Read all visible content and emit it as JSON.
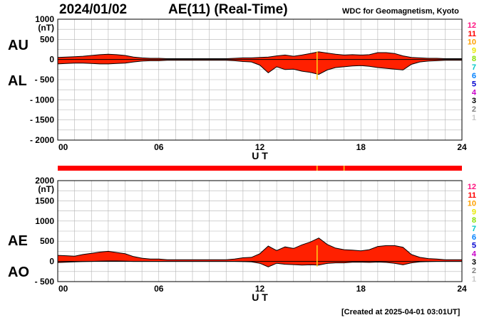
{
  "header": {
    "date": "2024/01/02",
    "title": "AE(11) (Real-Time)",
    "source": "WDC for Geomagnetism, Kyoto"
  },
  "footer": {
    "created": "[Created at 2025-04-01 03:01UT]"
  },
  "colors": {
    "fill": "#ff2000",
    "outline": "#000000",
    "marker": "#ffd21a",
    "grid": "#b4b4b4"
  },
  "chart_data": [
    {
      "type": "area",
      "panel": "AU-AL",
      "unit_label": "(nT)",
      "upper_label": "AU",
      "lower_label": "AL",
      "xlabel": "U T",
      "xlim": [
        0,
        24
      ],
      "ylim": [
        -2000,
        1000
      ],
      "x_ticks": [
        "00",
        "06",
        "12",
        "18",
        "24"
      ],
      "y_ticks": [
        "1000",
        "500",
        "0",
        "- 500",
        "- 1000",
        "- 1500",
        "- 2000"
      ],
      "x": [
        0,
        0.5,
        1,
        1.5,
        2,
        2.5,
        3,
        3.5,
        4,
        4.5,
        5,
        5.5,
        6,
        6.5,
        7,
        7.5,
        8,
        8.5,
        9,
        9.5,
        10,
        10.5,
        11,
        11.5,
        12,
        12.5,
        13,
        13.5,
        14,
        14.5,
        15,
        15.5,
        16,
        16.5,
        17,
        17.5,
        18,
        18.5,
        19,
        19.5,
        20,
        20.5,
        21,
        21.5,
        22,
        22.5,
        23,
        23.5,
        24
      ],
      "series": [
        {
          "name": "AU",
          "values": [
            50,
            60,
            70,
            80,
            100,
            120,
            130,
            120,
            100,
            60,
            40,
            30,
            30,
            20,
            20,
            20,
            20,
            20,
            20,
            20,
            20,
            30,
            40,
            40,
            50,
            60,
            90,
            110,
            80,
            110,
            150,
            190,
            160,
            130,
            110,
            120,
            110,
            120,
            170,
            170,
            150,
            90,
            50,
            40,
            30,
            30,
            20,
            20,
            20
          ]
        },
        {
          "name": "AL",
          "values": [
            -110,
            -100,
            -90,
            -90,
            -100,
            -110,
            -110,
            -100,
            -90,
            -60,
            -40,
            -30,
            -30,
            -20,
            -20,
            -20,
            -20,
            -20,
            -20,
            -20,
            -20,
            -30,
            -50,
            -60,
            -140,
            -330,
            -180,
            -250,
            -240,
            -290,
            -320,
            -370,
            -260,
            -200,
            -180,
            -160,
            -150,
            -170,
            -200,
            -220,
            -240,
            -260,
            -120,
            -60,
            -40,
            -30,
            -20,
            -20,
            -20
          ]
        }
      ],
      "markers": [
        15.4
      ]
    },
    {
      "type": "area",
      "panel": "AE-AO",
      "unit_label": "(nT)",
      "upper_label": "AE",
      "lower_label": "AO",
      "xlabel": "U T",
      "xlim": [
        0,
        24
      ],
      "ylim": [
        -500,
        2000
      ],
      "x_ticks": [
        "00",
        "06",
        "12",
        "18",
        "24"
      ],
      "y_ticks": [
        "2000",
        "1500",
        "1000",
        "500",
        "0",
        "- 500"
      ],
      "x": [
        0,
        0.5,
        1,
        1.5,
        2,
        2.5,
        3,
        3.5,
        4,
        4.5,
        5,
        5.5,
        6,
        6.5,
        7,
        7.5,
        8,
        8.5,
        9,
        9.5,
        10,
        10.5,
        11,
        11.5,
        12,
        12.5,
        13,
        13.5,
        14,
        14.5,
        15,
        15.5,
        16,
        16.5,
        17,
        17.5,
        18,
        18.5,
        19,
        19.5,
        20,
        20.5,
        21,
        21.5,
        22,
        22.5,
        23,
        23.5,
        24
      ],
      "series": [
        {
          "name": "AE",
          "values": [
            150,
            140,
            130,
            170,
            200,
            230,
            250,
            220,
            190,
            120,
            80,
            60,
            60,
            40,
            40,
            40,
            40,
            40,
            40,
            40,
            40,
            60,
            90,
            100,
            190,
            380,
            270,
            360,
            320,
            410,
            480,
            580,
            420,
            330,
            290,
            280,
            260,
            290,
            370,
            390,
            390,
            350,
            170,
            100,
            70,
            60,
            40,
            40,
            40
          ]
        },
        {
          "name": "AO",
          "values": [
            -30,
            -20,
            -10,
            -5,
            0,
            5,
            10,
            10,
            5,
            0,
            0,
            0,
            0,
            0,
            0,
            0,
            0,
            0,
            0,
            0,
            0,
            0,
            -5,
            -10,
            -45,
            -135,
            -45,
            -70,
            -80,
            -90,
            -85,
            -90,
            -50,
            -35,
            -35,
            -20,
            -20,
            -25,
            -15,
            -25,
            -45,
            -85,
            -35,
            -10,
            -5,
            0,
            0,
            0,
            0
          ]
        }
      ],
      "markers": [
        15.4
      ]
    }
  ],
  "station_band": {
    "markers": [
      15.4,
      17.0
    ]
  },
  "station_count_legend": [
    {
      "label": "12",
      "color": "#ff1480"
    },
    {
      "label": "11",
      "color": "#ff0000"
    },
    {
      "label": "10",
      "color": "#ffa000"
    },
    {
      "label": "9",
      "color": "#e8e800"
    },
    {
      "label": "8",
      "color": "#88e000"
    },
    {
      "label": "7",
      "color": "#00c8c8"
    },
    {
      "label": "6",
      "color": "#0080ff"
    },
    {
      "label": "5",
      "color": "#0000d0"
    },
    {
      "label": "4",
      "color": "#c800c8"
    },
    {
      "label": "3",
      "color": "#000000"
    },
    {
      "label": "2",
      "color": "#808080"
    },
    {
      "label": "1",
      "color": "#c8c8c8"
    }
  ]
}
